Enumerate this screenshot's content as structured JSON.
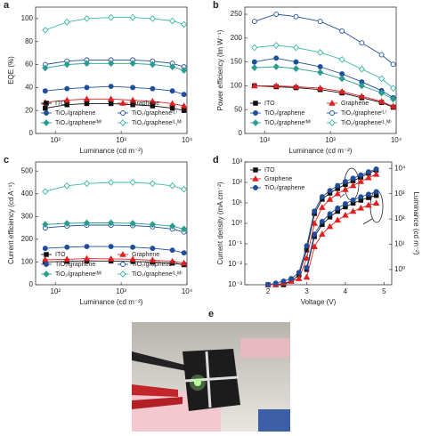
{
  "chart_data": [
    {
      "type": "line",
      "label": "a",
      "xlabel": "Luminance (cd m⁻²)",
      "ylabel": "EQE (%)",
      "xlog": true,
      "x": [
        70,
        150,
        300,
        700,
        1500,
        3000,
        6000,
        9000
      ],
      "xlim": [
        50,
        10000
      ],
      "xticks": [
        {
          "value": 100,
          "label": "10²"
        },
        {
          "value": 1000,
          "label": "10³"
        },
        {
          "value": 10000,
          "label": "10⁴"
        }
      ],
      "ylim": [
        0,
        110
      ],
      "yticks": [
        0,
        20,
        40,
        60,
        80,
        100
      ],
      "legend": "lower",
      "series": [
        {
          "name": "ITO",
          "color": "#111111",
          "marker": "square",
          "values": [
            22,
            25,
            26,
            26,
            25,
            24,
            22,
            20
          ]
        },
        {
          "name": "Graphene",
          "color": "#e02020",
          "marker": "triangle",
          "values": [
            27,
            29,
            30,
            30,
            29,
            28,
            26,
            24
          ]
        },
        {
          "name": "TiO₂/graphene",
          "color": "#1f4e9c",
          "marker": "circle",
          "values": [
            37,
            39,
            40,
            41,
            40,
            39,
            37,
            34
          ]
        },
        {
          "name": "TiO₂/graphene⁽ᴸ⁾",
          "color": "#1f4e9c",
          "marker": "circle-open",
          "values": [
            60,
            63,
            64,
            64,
            64,
            63,
            61,
            58
          ]
        },
        {
          "name": "TiO₂/graphene⁽ᴹ⁾",
          "color": "#2a9d8f",
          "marker": "diamond",
          "values": [
            57,
            60,
            61,
            61,
            61,
            60,
            58,
            55
          ]
        },
        {
          "name": "TiO₂/graphene⁽ᴸ,ᴹ⁾",
          "color": "#3cb8a8",
          "marker": "diamond-open",
          "values": [
            90,
            97,
            100,
            101,
            101,
            100,
            98,
            95
          ]
        }
      ]
    },
    {
      "type": "line",
      "label": "b",
      "xlabel": "Luminance (cd m⁻²)",
      "ylabel": "Power efficiency (lm W⁻¹)",
      "xlog": true,
      "x": [
        70,
        150,
        300,
        700,
        1500,
        3000,
        6000,
        9000
      ],
      "xlim": [
        50,
        10000
      ],
      "xticks": [
        {
          "value": 100,
          "label": "10²"
        },
        {
          "value": 1000,
          "label": "10³"
        },
        {
          "value": 10000,
          "label": "10⁴"
        }
      ],
      "ylim": [
        0,
        265
      ],
      "yticks": [
        0,
        50,
        100,
        150,
        200,
        250
      ],
      "legend": "lower",
      "series": [
        {
          "name": "ITO",
          "color": "#111111",
          "marker": "square",
          "values": [
            100,
            98,
            96,
            92,
            85,
            75,
            65,
            55
          ]
        },
        {
          "name": "Graphene",
          "color": "#e02020",
          "marker": "triangle",
          "values": [
            100,
            100,
            98,
            95,
            88,
            78,
            67,
            57
          ]
        },
        {
          "name": "TiO₂/graphene",
          "color": "#1f4e9c",
          "marker": "circle",
          "values": [
            150,
            158,
            150,
            140,
            125,
            108,
            90,
            75
          ]
        },
        {
          "name": "TiO₂/graphene⁽ᴸ⁾",
          "color": "#1f4e9c",
          "marker": "circle-open",
          "values": [
            235,
            250,
            245,
            235,
            215,
            190,
            165,
            145
          ]
        },
        {
          "name": "TiO₂/graphene⁽ᴹ⁾",
          "color": "#2a9d8f",
          "marker": "diamond",
          "values": [
            138,
            140,
            136,
            128,
            115,
            100,
            85,
            72
          ]
        },
        {
          "name": "TiO₂/graphene⁽ᴸ,ᴹ⁾",
          "color": "#3cb8a8",
          "marker": "diamond-open",
          "values": [
            180,
            185,
            180,
            170,
            155,
            135,
            115,
            95
          ]
        }
      ]
    },
    {
      "type": "line",
      "label": "c",
      "xlabel": "Luminance (cd m⁻²)",
      "ylabel": "Current efficiency (cd A⁻¹)",
      "xlog": true,
      "x": [
        70,
        150,
        300,
        700,
        1500,
        3000,
        6000,
        9000
      ],
      "xlim": [
        50,
        10000
      ],
      "xticks": [
        {
          "value": 100,
          "label": "10²"
        },
        {
          "value": 1000,
          "label": "10³"
        },
        {
          "value": 10000,
          "label": "10⁴"
        }
      ],
      "ylim": [
        0,
        540
      ],
      "yticks": [
        0,
        100,
        200,
        300,
        400,
        500
      ],
      "legend": "lower",
      "series": [
        {
          "name": "ITO",
          "color": "#111111",
          "marker": "square",
          "values": [
            100,
            103,
            105,
            104,
            102,
            100,
            95,
            88
          ]
        },
        {
          "name": "Graphene",
          "color": "#e02020",
          "marker": "triangle",
          "values": [
            110,
            112,
            115,
            114,
            112,
            108,
            103,
            95
          ]
        },
        {
          "name": "TiO₂/graphene",
          "color": "#1f4e9c",
          "marker": "circle",
          "values": [
            160,
            165,
            168,
            168,
            165,
            160,
            152,
            140
          ]
        },
        {
          "name": "TiO₂/graphene⁽ᴸ⁾",
          "color": "#1f4e9c",
          "marker": "circle-open",
          "values": [
            250,
            258,
            262,
            262,
            260,
            255,
            245,
            232
          ]
        },
        {
          "name": "TiO₂/graphene⁽ᴹ⁾",
          "color": "#2a9d8f",
          "marker": "diamond",
          "values": [
            265,
            270,
            272,
            272,
            270,
            265,
            258,
            245
          ]
        },
        {
          "name": "TiO₂/graphene⁽ᴸ,ᴹ⁾",
          "color": "#3cb8a8",
          "marker": "diamond-open",
          "values": [
            410,
            435,
            445,
            450,
            450,
            445,
            435,
            420
          ]
        }
      ]
    },
    {
      "type": "line",
      "label": "d",
      "xlabel": "Voltage (V)",
      "ylabel": "Current density (mA cm⁻²)",
      "y2label": "Luminance (cd m⁻²)",
      "ylog": true,
      "x": [
        2.0,
        2.2,
        2.4,
        2.6,
        2.8,
        3.0,
        3.2,
        3.4,
        3.6,
        3.8,
        4.0,
        4.2,
        4.4,
        4.6,
        4.8
      ],
      "xlim": [
        1.4,
        5.2
      ],
      "xticks": [
        2,
        3,
        4,
        5
      ],
      "ylim": [
        0.001,
        1000
      ],
      "yticks": [
        {
          "value": 0.001,
          "label": "10⁻³"
        },
        {
          "value": 0.01,
          "label": "10⁻²"
        },
        {
          "value": 0.1,
          "label": "10⁻¹"
        },
        {
          "value": 1,
          "label": "10⁰"
        },
        {
          "value": 10,
          "label": "10¹"
        },
        {
          "value": 100,
          "label": "10²"
        },
        {
          "value": 1000,
          "label": "10³"
        }
      ],
      "y2lim": [
        0.25,
        18000
      ],
      "y2ticks": [
        {
          "value": 1,
          "label": "10⁰"
        },
        {
          "value": 10,
          "label": "10¹"
        },
        {
          "value": 100,
          "label": "10²"
        },
        {
          "value": 1000,
          "label": "10³"
        },
        {
          "value": 10000,
          "label": "10⁴"
        }
      ],
      "legend": "upper left",
      "series": [
        {
          "name": "ITO",
          "color": "#111111",
          "marker": "square",
          "values": [
            0.001,
            0.001,
            0.001,
            0.0015,
            0.003,
            0.05,
            3,
            15,
            30,
            50,
            80,
            120,
            180,
            280,
            400
          ]
        },
        {
          "name": "Graphene",
          "color": "#e02020",
          "marker": "triangle",
          "values": [
            0.001,
            0.001,
            0.0012,
            0.0015,
            0.002,
            0.02,
            1,
            6,
            15,
            28,
            45,
            70,
            110,
            170,
            250
          ]
        },
        {
          "name": "TiO₂/graphene",
          "color": "#1f4e9c",
          "marker": "circle",
          "values": [
            0.001,
            0.0012,
            0.0015,
            0.002,
            0.004,
            0.08,
            4,
            20,
            40,
            70,
            110,
            160,
            230,
            330,
            450
          ]
        },
        {
          "color": "#111111",
          "marker": "square",
          "axis": "y2",
          "values": [
            null,
            null,
            null,
            null,
            null,
            1,
            20,
            60,
            120,
            200,
            300,
            420,
            550,
            700,
            850
          ]
        },
        {
          "color": "#e02020",
          "marker": "triangle",
          "axis": "y2",
          "values": [
            null,
            null,
            null,
            null,
            null,
            0.5,
            8,
            25,
            50,
            90,
            140,
            200,
            270,
            350,
            420
          ]
        },
        {
          "color": "#1f4e9c",
          "marker": "circle",
          "axis": "y2",
          "values": [
            null,
            null,
            null,
            null,
            null,
            1.2,
            25,
            80,
            160,
            270,
            400,
            560,
            750,
            950,
            1200
          ]
        }
      ]
    }
  ],
  "photo": {
    "label": "e"
  }
}
